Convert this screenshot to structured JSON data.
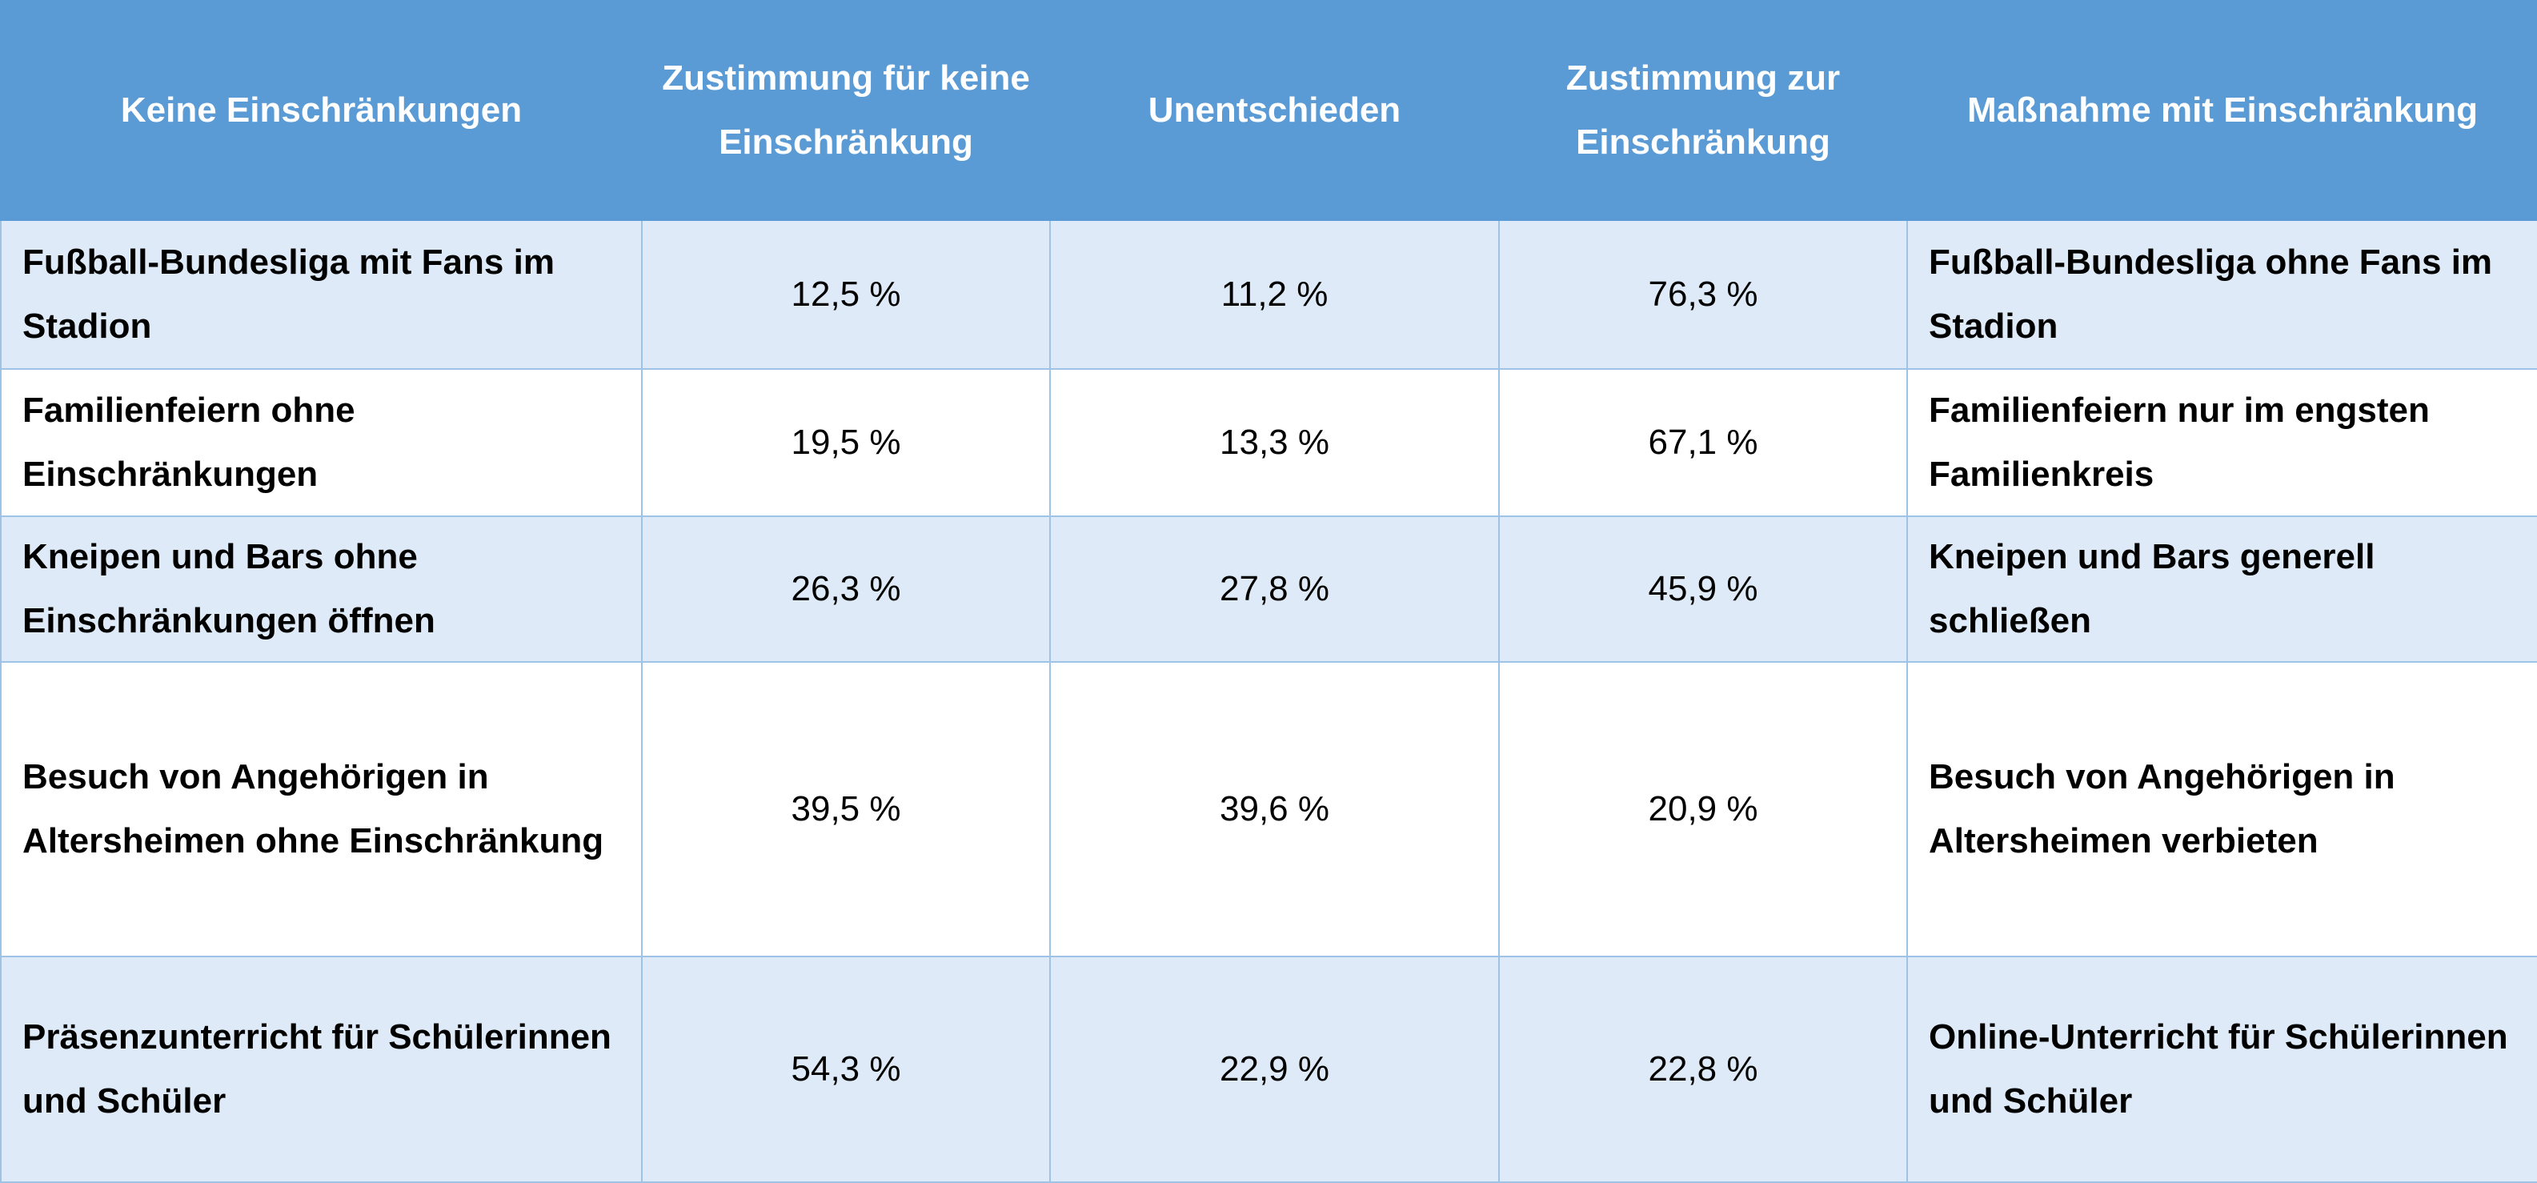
{
  "chart_data": {
    "type": "table",
    "columns": [
      "Keine Einschränkungen",
      "Zustimmung für keine Einschränkung",
      "Unentschieden",
      "Zustimmung zur Einschränkung",
      "Maßnahme mit Einschränkung"
    ],
    "rows": [
      {
        "no_restriction": "Fußball-Bundesliga mit Fans im Stadion",
        "agree_no_restriction": "12,5 %",
        "undecided": "11,2 %",
        "agree_restriction": "76,3 %",
        "restriction": "Fußball-Bundesliga ohne Fans im Stadion"
      },
      {
        "no_restriction": "Familienfeiern ohne Einschränkungen",
        "agree_no_restriction": "19,5 %",
        "undecided": "13,3 %",
        "agree_restriction": "67,1 %",
        "restriction": "Familienfeiern nur im engsten Familienkreis"
      },
      {
        "no_restriction": "Kneipen und Bars ohne Einschränkungen öffnen",
        "agree_no_restriction": "26,3 %",
        "undecided": "27,8 %",
        "agree_restriction": "45,9 %",
        "restriction": "Kneipen und Bars generell schließen"
      },
      {
        "no_restriction": "Besuch von Angehörigen in Altersheimen ohne Einschränkung",
        "agree_no_restriction": "39,5 %",
        "undecided": "39,6 %",
        "agree_restriction": "20,9 %",
        "restriction": "Besuch von Angehörigen in Altersheimen verbieten"
      },
      {
        "no_restriction": "Präsenzunterricht für Schülerinnen und Schüler",
        "agree_no_restriction": "54,3 %",
        "undecided": "22,9 %",
        "agree_restriction": "22,8 %",
        "restriction": "Online-Unterricht für Schülerinnen und Schüler"
      }
    ]
  },
  "colors": {
    "header_background": "#5b9bd5",
    "header_text": "#ffffff",
    "band_row": "#deeaf7",
    "plain_row": "#ffffff",
    "grid_line": "#9dc3e6"
  }
}
